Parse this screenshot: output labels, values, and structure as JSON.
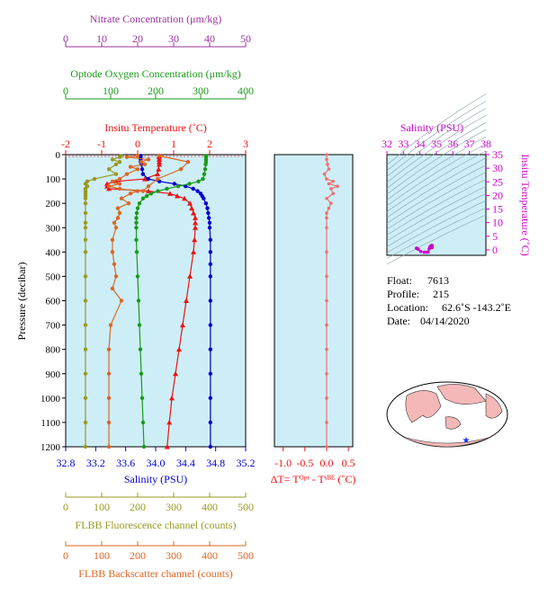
{
  "chart_data": {
    "type": "line",
    "pressure_axis": {
      "label": "Pressure (decibar)",
      "ticks": [
        0,
        100,
        200,
        300,
        400,
        500,
        600,
        700,
        800,
        900,
        1000,
        1100,
        1200
      ],
      "range": [
        0,
        1200
      ]
    },
    "axes": {
      "nitrate": {
        "label": "Nitrate Concentration (μm/kg)",
        "ticks": [
          0,
          10,
          20,
          30,
          40,
          50
        ],
        "range": [
          0,
          50
        ],
        "color": "#993399"
      },
      "oxygen": {
        "label": "Optode Oxygen Concentration (μm/kg)",
        "ticks": [
          0,
          100,
          200,
          300,
          400
        ],
        "range": [
          0,
          400
        ],
        "color": "#1a9a1a"
      },
      "temperature": {
        "label": "Insitu Temperature (˚C)",
        "ticks": [
          -2,
          -1,
          0,
          1,
          2,
          3
        ],
        "range": [
          -2,
          3
        ],
        "color": "#ee1111"
      },
      "salinity": {
        "label": "Salinity (PSU)",
        "ticks": [
          32.8,
          33.2,
          33.6,
          34.0,
          34.4,
          34.8,
          35.2
        ],
        "range": [
          32.8,
          35.2
        ],
        "color": "#0000cc"
      },
      "fluorescence": {
        "label": "FLBB Fluorescence channel (counts)",
        "ticks": [
          0,
          100,
          200,
          300,
          400,
          500
        ],
        "range": [
          0,
          500
        ],
        "color": "#999922"
      },
      "backscatter": {
        "label": "FLBB Backscatter channel (counts)",
        "ticks": [
          0,
          100,
          200,
          300,
          400,
          500
        ],
        "range": [
          0,
          500
        ],
        "color": "#dd6622"
      }
    },
    "series": [
      {
        "name": "Temperature",
        "color": "#ee1111",
        "marker": "triangle",
        "p": [
          5,
          10,
          20,
          30,
          40,
          60,
          80,
          100,
          110,
          120,
          130,
          140,
          150,
          160,
          170,
          180,
          200,
          220,
          240,
          260,
          280,
          300,
          350,
          400,
          500,
          600,
          700,
          800,
          900,
          1000,
          1100,
          1200
        ],
        "v": [
          0.6,
          0.6,
          0.6,
          0.6,
          0.6,
          0.58,
          0.55,
          0.2,
          -0.6,
          -0.85,
          -0.85,
          -0.8,
          0.3,
          0.9,
          1.1,
          1.3,
          1.45,
          1.5,
          1.55,
          1.6,
          1.6,
          1.6,
          1.58,
          1.55,
          1.45,
          1.35,
          1.25,
          1.15,
          1.05,
          0.95,
          0.88,
          0.82
        ]
      },
      {
        "name": "Salinity",
        "color": "#0000cc",
        "marker": "circle",
        "p": [
          5,
          10,
          20,
          30,
          40,
          60,
          80,
          100,
          110,
          120,
          130,
          140,
          150,
          160,
          170,
          180,
          200,
          220,
          240,
          260,
          280,
          300,
          350,
          400,
          450,
          500,
          600,
          700,
          800,
          900,
          1000,
          1100,
          1200
        ],
        "v": [
          33.8,
          33.8,
          33.8,
          33.8,
          33.81,
          33.82,
          33.83,
          33.9,
          34.05,
          34.25,
          34.4,
          34.5,
          34.56,
          34.6,
          34.62,
          34.64,
          34.67,
          34.69,
          34.7,
          34.71,
          34.72,
          34.72,
          34.73,
          34.73,
          34.73,
          34.73,
          34.73,
          34.73,
          34.73,
          34.73,
          34.73,
          34.73,
          34.73
        ]
      },
      {
        "name": "Oxygen",
        "color": "#1a9a1a",
        "marker": "circle",
        "p": [
          5,
          10,
          20,
          30,
          40,
          60,
          80,
          100,
          110,
          120,
          130,
          140,
          150,
          160,
          170,
          180,
          200,
          220,
          240,
          260,
          280,
          300,
          350,
          400,
          500,
          600,
          700,
          800,
          900,
          1000,
          1100,
          1200
        ],
        "v": [
          312,
          312,
          312,
          312,
          311,
          310,
          308,
          305,
          295,
          275,
          250,
          225,
          205,
          190,
          180,
          172,
          164,
          160,
          158,
          157,
          157,
          157,
          157,
          158,
          160,
          162,
          164,
          166,
          168,
          170,
          172,
          174
        ]
      },
      {
        "name": "Nitrate",
        "color": "#999922",
        "marker": "circle",
        "axis": "fluorescence",
        "p": [
          5,
          10,
          20,
          30,
          40,
          60,
          80,
          100,
          110,
          120,
          130,
          140,
          150,
          160,
          170,
          180,
          200,
          240,
          280,
          300,
          350,
          400,
          500,
          600,
          700,
          800,
          900,
          1000,
          1100,
          1200
        ],
        "v": [
          155,
          150,
          130,
          150,
          140,
          120,
          140,
          80,
          60,
          55,
          60,
          55,
          55,
          55,
          55,
          55,
          55,
          55,
          55,
          55,
          55,
          55,
          55,
          55,
          55,
          55,
          55,
          55,
          55,
          55
        ]
      },
      {
        "name": "Backscatter",
        "color": "#dd6622",
        "marker": "circle",
        "p": [
          5,
          10,
          20,
          30,
          40,
          50,
          60,
          80,
          100,
          110,
          120,
          130,
          140,
          150,
          160,
          180,
          200,
          220,
          240,
          260,
          280,
          300,
          350,
          400,
          450,
          500,
          550,
          600,
          700,
          800,
          900,
          1000,
          1100,
          1200
        ],
        "v": [
          200,
          170,
          230,
          210,
          220,
          180,
          200,
          170,
          150,
          130,
          150,
          120,
          150,
          200,
          180,
          155,
          175,
          145,
          150,
          145,
          135,
          140,
          130,
          130,
          135,
          140,
          130,
          155,
          125,
          120,
          120,
          120,
          120,
          120
        ]
      },
      {
        "name": "Backscatter-upper",
        "color": "#dd6622",
        "marker": "circle",
        "p": [
          5,
          30,
          60,
          100,
          130,
          150
        ],
        "v": [
          260,
          340,
          320,
          255,
          230,
          215
        ]
      }
    ],
    "delta_t": {
      "label": "ΔT= Tᴼᵖᵗ - Tˢᴮᴱ (˚C)",
      "ticks": [
        "-1.0",
        "-0.5",
        "0.0",
        "0.5"
      ],
      "range": [
        -1.2,
        0.6
      ],
      "color": "#ee1111",
      "p": [
        0,
        20,
        40,
        60,
        80,
        100,
        110,
        120,
        130,
        140,
        160,
        180,
        200,
        220,
        240,
        260,
        300,
        400,
        500,
        600,
        700,
        800,
        900,
        1000,
        1100,
        1200
      ],
      "v": [
        0.0,
        0.0,
        0.02,
        0.05,
        -0.05,
        0.0,
        0.15,
        0.05,
        0.25,
        0.1,
        0.15,
        0.0,
        0.1,
        0.05,
        0.0,
        0.0,
        0.0,
        0.0,
        0.0,
        0.0,
        0.0,
        0.0,
        0.0,
        0.0,
        0.0,
        0.0
      ]
    },
    "ts_diagram": {
      "title": "Salinity (PSU)",
      "ylabel": "Insitu Temperature (˚C)",
      "xticks": [
        32,
        33,
        34,
        35,
        36,
        37,
        38
      ],
      "yticks": [
        0,
        5,
        10,
        15,
        20,
        25,
        30,
        35
      ],
      "color": "#cc00cc"
    },
    "map": {
      "float_lon": -143.2,
      "float_lat": -62.6
    }
  },
  "info": {
    "float_label": "Float:",
    "float_value": "7613",
    "profile_label": "Profile:",
    "profile_value": "215",
    "location_label": "Location:",
    "location_value": "62.6˚S  -143.2˚E",
    "date_label": "Date:",
    "date_value": "04/14/2020"
  }
}
